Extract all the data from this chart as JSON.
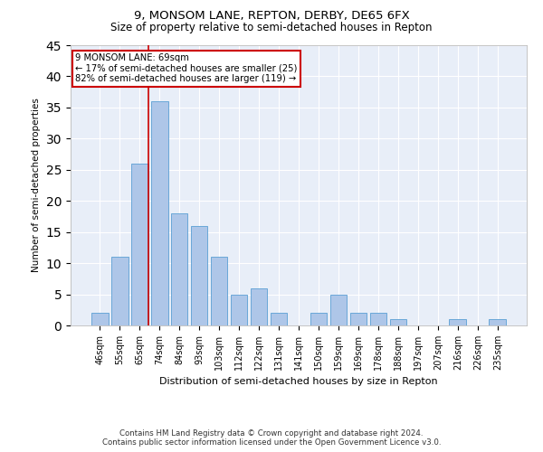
{
  "title1": "9, MONSOM LANE, REPTON, DERBY, DE65 6FX",
  "title2": "Size of property relative to semi-detached houses in Repton",
  "xlabel": "Distribution of semi-detached houses by size in Repton",
  "ylabel": "Number of semi-detached properties",
  "categories": [
    "46sqm",
    "55sqm",
    "65sqm",
    "74sqm",
    "84sqm",
    "93sqm",
    "103sqm",
    "112sqm",
    "122sqm",
    "131sqm",
    "141sqm",
    "150sqm",
    "159sqm",
    "169sqm",
    "178sqm",
    "188sqm",
    "197sqm",
    "207sqm",
    "216sqm",
    "226sqm",
    "235sqm"
  ],
  "values": [
    2,
    11,
    26,
    36,
    18,
    16,
    11,
    5,
    6,
    2,
    0,
    2,
    5,
    2,
    2,
    1,
    0,
    0,
    1,
    0,
    1
  ],
  "bar_color": "#aec6e8",
  "bar_edge_color": "#5a9fd4",
  "ylim": [
    0,
    45
  ],
  "yticks": [
    0,
    5,
    10,
    15,
    20,
    25,
    30,
    35,
    40,
    45
  ],
  "annotation_text": "9 MONSOM LANE: 69sqm\n← 17% of semi-detached houses are smaller (25)\n82% of semi-detached houses are larger (119) →",
  "annotation_box_color": "#ffffff",
  "annotation_box_edge": "#cc0000",
  "property_line_color": "#cc0000",
  "footer1": "Contains HM Land Registry data © Crown copyright and database right 2024.",
  "footer2": "Contains public sector information licensed under the Open Government Licence v3.0.",
  "bg_color": "#e8eef8",
  "fig_bg_color": "#ffffff"
}
